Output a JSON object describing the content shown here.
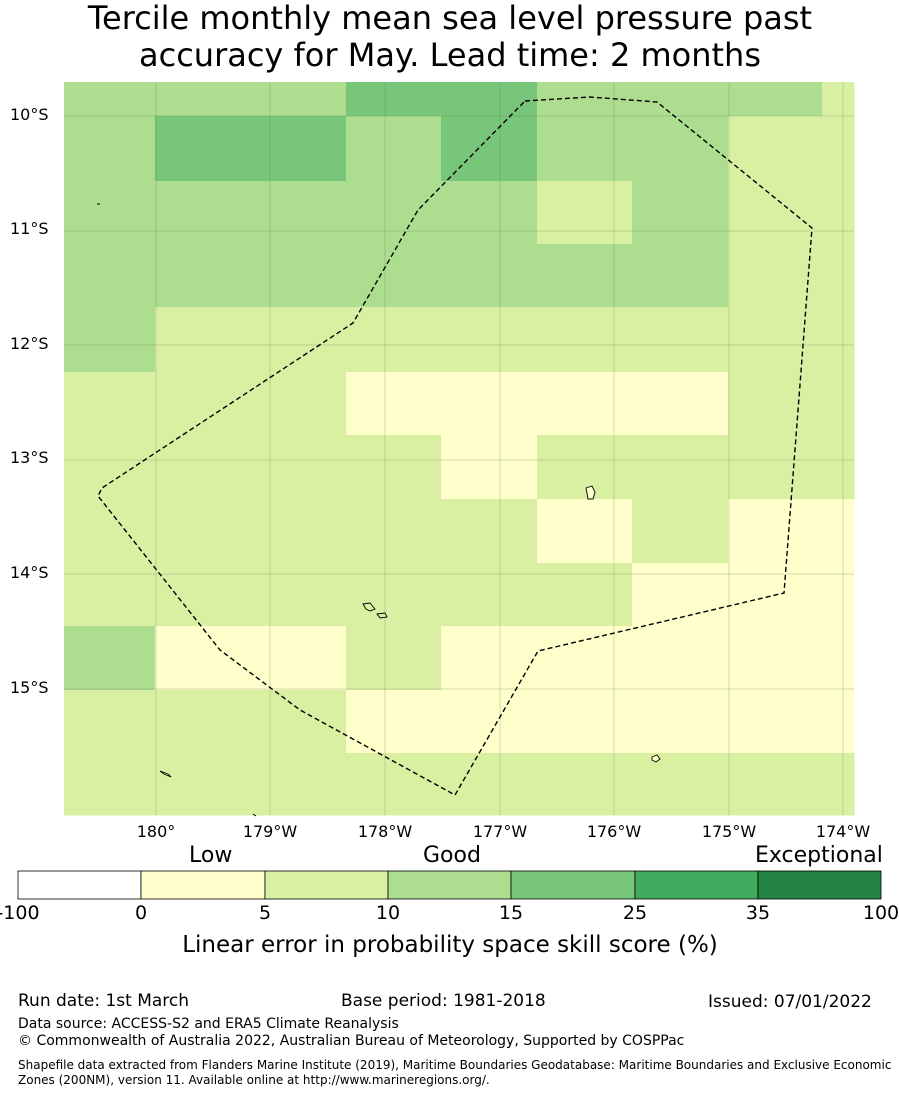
{
  "title_line1": "Tercile monthly mean sea level pressure past",
  "title_line2": "accuracy for May. Lead time: 2 months",
  "lat_labels": [
    "10°S",
    "11°S",
    "12°S",
    "13°S",
    "14°S",
    "15°S"
  ],
  "lon_labels": [
    "180°",
    "179°W",
    "178°W",
    "177°W",
    "176°W",
    "175°W",
    "174°W"
  ],
  "colorbar": {
    "category_labels": [
      "Low",
      "Good",
      "Exceptional"
    ],
    "tick_labels": [
      "-100",
      "0",
      "5",
      "10",
      "15",
      "25",
      "35",
      "100"
    ],
    "colors": [
      "#ffffff",
      "#ffffcc",
      "#d9f0a3",
      "#addd8e",
      "#78c679",
      "#41ab5d",
      "#238443"
    ],
    "title": "Linear error in probability space skill score (%)"
  },
  "grid_classes": [
    [
      3,
      3,
      3,
      4,
      4,
      3,
      3,
      3,
      2
    ],
    [
      3,
      4,
      4,
      3,
      4,
      3,
      3,
      2,
      2
    ],
    [
      3,
      3,
      3,
      3,
      3,
      2,
      3,
      2,
      2
    ],
    [
      3,
      3,
      3,
      3,
      3,
      3,
      3,
      2,
      2
    ],
    [
      3,
      2,
      2,
      2,
      2,
      2,
      2,
      2,
      2
    ],
    [
      2,
      2,
      2,
      1,
      1,
      1,
      1,
      2,
      2
    ],
    [
      2,
      2,
      2,
      2,
      1,
      2,
      2,
      2,
      2
    ],
    [
      2,
      2,
      2,
      2,
      2,
      1,
      2,
      1,
      1
    ],
    [
      2,
      2,
      2,
      2,
      2,
      2,
      1,
      1,
      1
    ],
    [
      3,
      1,
      1,
      2,
      1,
      1,
      1,
      1,
      1
    ],
    [
      2,
      2,
      2,
      1,
      1,
      1,
      1,
      1,
      1
    ],
    [
      2,
      2,
      2,
      2,
      2,
      2,
      2,
      2,
      2
    ]
  ],
  "footer": {
    "run_date": "Run date: 1st March",
    "base_period": "Base period: 1981-2018",
    "issued": "Issued: 07/01/2022",
    "data_source": "Data source: ACCESS-S2 and ERA5 Climate Reanalysis",
    "copyright": "© Commonwealth of Australia 2022, Australian Bureau of Meteorology, Supported by COSPPac",
    "shapefile_line1": "Shapefile data extracted from Flanders Marine Institute (2019), Maritime Boundaries Geodatabase: Maritime Boundaries and Exclusive Economic",
    "shapefile_line2": "Zones (200NM), version 11. Available online at http://www.marineregions.org/."
  }
}
